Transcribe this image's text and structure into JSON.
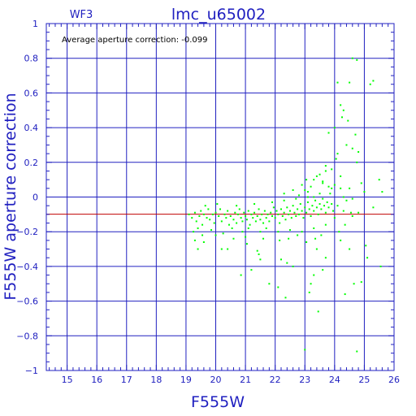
{
  "chart_data": {
    "type": "scatter",
    "title": "lmc_u65002",
    "subtitle": "WF3",
    "xlabel": "F555W",
    "ylabel": "F555W aperture correction",
    "annotation": "Average aperture correction: -0.099",
    "average_value": -0.099,
    "xlim": [
      14.3,
      26.0
    ],
    "ylim": [
      -1.0,
      1.0
    ],
    "xticks": [
      15,
      16,
      17,
      18,
      19,
      20,
      21,
      22,
      23,
      24,
      25,
      26
    ],
    "yticks": [
      -1,
      -0.8,
      -0.6,
      -0.4,
      -0.2,
      0,
      0.2,
      0.4,
      0.6,
      0.8,
      1
    ],
    "ytick_labels": [
      "−1",
      "−0.8",
      "−0.6",
      "−0.4",
      "−0.2",
      "0",
      "0.2",
      "0.4",
      "0.6",
      "0.8",
      "1"
    ],
    "grid": true,
    "colors": {
      "axes": "#2020c0",
      "grid": "#2020c0",
      "points": "#00ff00",
      "average_line": "#c00000",
      "text": "#2020c0"
    },
    "points": [
      [
        24.6,
        0.8
      ],
      [
        24.75,
        0.79
      ],
      [
        24.1,
        0.66
      ],
      [
        24.5,
        0.66
      ],
      [
        25.3,
        0.67
      ],
      [
        25.2,
        0.65
      ],
      [
        24.2,
        0.53
      ],
      [
        24.3,
        0.5
      ],
      [
        24.25,
        0.46
      ],
      [
        24.45,
        0.44
      ],
      [
        24.0,
        0.4
      ],
      [
        24.7,
        0.36
      ],
      [
        23.8,
        0.37
      ],
      [
        24.4,
        0.3
      ],
      [
        24.6,
        0.28
      ],
      [
        24.8,
        0.26
      ],
      [
        24.1,
        0.25
      ],
      [
        24.75,
        0.2
      ],
      [
        23.7,
        0.18
      ],
      [
        23.9,
        0.16
      ],
      [
        24.2,
        0.12
      ],
      [
        23.5,
        0.13
      ],
      [
        23.3,
        0.1
      ],
      [
        23.05,
        0.1
      ],
      [
        23.6,
        0.09
      ],
      [
        23.8,
        0.06
      ],
      [
        24.0,
        0.07
      ],
      [
        24.5,
        0.05
      ],
      [
        24.9,
        0.08
      ],
      [
        25.5,
        0.1
      ],
      [
        25.0,
        0.03
      ],
      [
        25.6,
        0.03
      ],
      [
        24.3,
        0.0
      ],
      [
        24.6,
        -0.01
      ],
      [
        23.3,
        0.0
      ],
      [
        23.1,
        0.03
      ],
      [
        25.3,
        -0.06
      ],
      [
        24.55,
        -0.09
      ],
      [
        24.8,
        -0.09
      ],
      [
        24.6,
        -0.11
      ],
      [
        25.05,
        -0.28
      ],
      [
        24.35,
        -0.16
      ],
      [
        24.15,
        -0.2
      ],
      [
        24.2,
        -0.25
      ],
      [
        24.5,
        -0.3
      ],
      [
        25.1,
        -0.35
      ],
      [
        25.55,
        -0.4
      ],
      [
        24.9,
        -0.49
      ],
      [
        24.65,
        -0.5
      ],
      [
        24.35,
        -0.56
      ],
      [
        24.75,
        -0.89
      ],
      [
        23.7,
        -0.35
      ],
      [
        23.4,
        -0.3
      ],
      [
        23.3,
        -0.45
      ],
      [
        23.2,
        -0.5
      ],
      [
        23.6,
        -0.42
      ],
      [
        23.45,
        -0.66
      ],
      [
        23.0,
        -0.88
      ],
      [
        23.15,
        -0.55
      ],
      [
        22.1,
        -0.52
      ],
      [
        22.2,
        -0.36
      ],
      [
        22.4,
        -0.38
      ],
      [
        22.6,
        -0.4
      ],
      [
        21.2,
        -0.42
      ],
      [
        20.85,
        -0.45
      ],
      [
        21.5,
        -0.36
      ],
      [
        22.35,
        -0.58
      ],
      [
        21.8,
        -0.5
      ],
      [
        20.4,
        -0.3
      ],
      [
        19.4,
        -0.3
      ],
      [
        19.6,
        -0.26
      ],
      [
        20.2,
        -0.3
      ],
      [
        21.05,
        -0.27
      ],
      [
        21.4,
        -0.31
      ],
      [
        21.45,
        -0.33
      ],
      [
        23.55,
        -0.22
      ],
      [
        19.1,
        -0.1
      ],
      [
        19.2,
        -0.12
      ],
      [
        19.3,
        -0.09
      ],
      [
        19.35,
        -0.14
      ],
      [
        19.45,
        -0.11
      ],
      [
        19.5,
        -0.08
      ],
      [
        19.55,
        -0.16
      ],
      [
        19.6,
        -0.1
      ],
      [
        19.7,
        -0.12
      ],
      [
        19.75,
        -0.07
      ],
      [
        19.8,
        -0.13
      ],
      [
        19.9,
        -0.1
      ],
      [
        19.95,
        -0.15
      ],
      [
        20.0,
        -0.09
      ],
      [
        20.1,
        -0.11
      ],
      [
        20.15,
        -0.07
      ],
      [
        20.2,
        -0.14
      ],
      [
        20.3,
        -0.1
      ],
      [
        20.35,
        -0.12
      ],
      [
        20.4,
        -0.08
      ],
      [
        20.45,
        -0.16
      ],
      [
        20.5,
        -0.11
      ],
      [
        20.6,
        -0.13
      ],
      [
        20.65,
        -0.09
      ],
      [
        20.7,
        -0.15
      ],
      [
        20.75,
        -0.1
      ],
      [
        20.8,
        -0.07
      ],
      [
        20.85,
        -0.12
      ],
      [
        20.9,
        -0.14
      ],
      [
        20.95,
        -0.09
      ],
      [
        21.0,
        -0.11
      ],
      [
        21.05,
        -0.13
      ],
      [
        21.1,
        -0.08
      ],
      [
        21.15,
        -0.16
      ],
      [
        21.2,
        -0.1
      ],
      [
        21.25,
        -0.12
      ],
      [
        21.3,
        -0.09
      ],
      [
        21.35,
        -0.14
      ],
      [
        21.4,
        -0.11
      ],
      [
        21.45,
        -0.07
      ],
      [
        21.5,
        -0.13
      ],
      [
        21.55,
        -0.1
      ],
      [
        21.6,
        -0.15
      ],
      [
        21.65,
        -0.08
      ],
      [
        21.7,
        -0.12
      ],
      [
        21.75,
        -0.1
      ],
      [
        21.8,
        -0.14
      ],
      [
        21.85,
        -0.09
      ],
      [
        21.9,
        -0.11
      ],
      [
        21.95,
        -0.06
      ],
      [
        22.0,
        -0.12
      ],
      [
        22.05,
        -0.08
      ],
      [
        22.1,
        -0.1
      ],
      [
        22.15,
        -0.15
      ],
      [
        22.2,
        -0.07
      ],
      [
        22.25,
        -0.11
      ],
      [
        22.3,
        -0.09
      ],
      [
        22.35,
        -0.13
      ],
      [
        22.4,
        -0.06
      ],
      [
        22.45,
        -0.1
      ],
      [
        22.5,
        -0.08
      ],
      [
        22.55,
        -0.12
      ],
      [
        22.6,
        -0.05
      ],
      [
        22.65,
        -0.09
      ],
      [
        22.7,
        -0.11
      ],
      [
        22.75,
        -0.07
      ],
      [
        22.8,
        -0.1
      ],
      [
        22.85,
        -0.04
      ],
      [
        22.9,
        -0.08
      ],
      [
        22.95,
        -0.12
      ],
      [
        23.0,
        -0.06
      ],
      [
        23.05,
        -0.09
      ],
      [
        23.1,
        -0.03
      ],
      [
        23.15,
        -0.07
      ],
      [
        23.2,
        -0.11
      ],
      [
        23.25,
        -0.05
      ],
      [
        23.3,
        -0.08
      ],
      [
        23.35,
        -0.02
      ],
      [
        23.4,
        -0.06
      ],
      [
        23.45,
        -0.1
      ],
      [
        23.5,
        -0.04
      ],
      [
        23.55,
        -0.07
      ],
      [
        23.6,
        -0.01
      ],
      [
        23.65,
        -0.05
      ],
      [
        23.7,
        -0.09
      ],
      [
        23.75,
        -0.03
      ],
      [
        23.8,
        -0.06
      ],
      [
        23.85,
        0.02
      ],
      [
        23.9,
        -0.04
      ],
      [
        23.95,
        -0.08
      ],
      [
        19.25,
        -0.2
      ],
      [
        19.4,
        -0.18
      ],
      [
        19.55,
        -0.22
      ],
      [
        19.65,
        -0.05
      ],
      [
        19.85,
        -0.19
      ],
      [
        20.05,
        -0.04
      ],
      [
        20.25,
        -0.21
      ],
      [
        20.55,
        -0.18
      ],
      [
        20.7,
        -0.05
      ],
      [
        20.9,
        -0.2
      ],
      [
        21.1,
        -0.18
      ],
      [
        21.3,
        -0.04
      ],
      [
        21.5,
        -0.2
      ],
      [
        21.7,
        -0.18
      ],
      [
        21.9,
        -0.03
      ],
      [
        22.1,
        -0.2
      ],
      [
        22.3,
        -0.02
      ],
      [
        22.5,
        -0.19
      ],
      [
        22.7,
        -0.01
      ],
      [
        22.9,
        -0.2
      ],
      [
        23.1,
        0.0
      ],
      [
        23.3,
        -0.18
      ],
      [
        23.5,
        0.02
      ],
      [
        23.7,
        -0.16
      ],
      [
        23.9,
        0.05
      ],
      [
        22.15,
        -0.25
      ],
      [
        22.45,
        -0.24
      ],
      [
        22.75,
        -0.22
      ],
      [
        23.05,
        -0.26
      ],
      [
        23.35,
        -0.24
      ],
      [
        21.6,
        -0.24
      ],
      [
        21.0,
        -0.23
      ],
      [
        20.6,
        -0.24
      ],
      [
        20.0,
        -0.22
      ],
      [
        19.3,
        -0.25
      ],
      [
        22.3,
        0.02
      ],
      [
        22.6,
        0.04
      ],
      [
        22.8,
        0.01
      ],
      [
        23.2,
        0.06
      ],
      [
        23.6,
        0.08
      ],
      [
        23.0,
        0.04
      ],
      [
        22.9,
        0.07
      ],
      [
        23.4,
        0.12
      ],
      [
        23.7,
        0.15
      ],
      [
        24.05,
        0.22
      ],
      [
        24.0,
        -0.12
      ],
      [
        24.1,
        -0.05
      ],
      [
        24.3,
        -0.08
      ],
      [
        24.4,
        -0.02
      ],
      [
        24.2,
        0.05
      ]
    ]
  }
}
